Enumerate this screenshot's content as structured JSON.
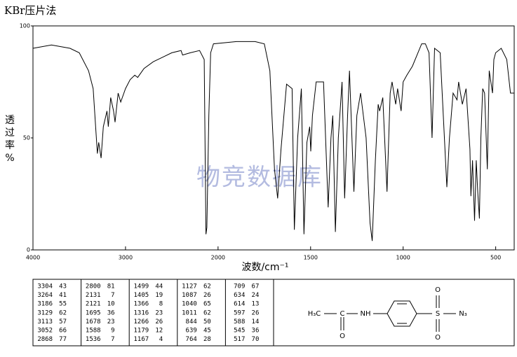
{
  "chart_data": {
    "type": "line",
    "title": "KBr压片法",
    "watermark": "物竞数据库",
    "x_label": "波数/cm⁻¹",
    "y_label": "透过率%",
    "xlim": [
      4000,
      400
    ],
    "x_scale_break": 2000,
    "xticks": [
      4000,
      3000,
      2000,
      1500,
      1000,
      500
    ],
    "ylim": [
      0,
      100
    ],
    "yticks": [
      0,
      50,
      100
    ],
    "color": "#000000",
    "x": [
      4000,
      3800,
      3600,
      3500,
      3400,
      3350,
      3304,
      3290,
      3264,
      3240,
      3200,
      3186,
      3160,
      3129,
      3113,
      3080,
      3052,
      3000,
      2950,
      2900,
      2868,
      2800,
      2700,
      2600,
      2500,
      2400,
      2383,
      2300,
      2200,
      2150,
      2131,
      2121,
      2100,
      2080,
      2050,
      1900,
      1800,
      1750,
      1720,
      1695,
      1678,
      1660,
      1630,
      1600,
      1588,
      1570,
      1550,
      1536,
      1520,
      1505,
      1499,
      1490,
      1470,
      1430,
      1405,
      1390,
      1380,
      1366,
      1350,
      1330,
      1316,
      1300,
      1290,
      1266,
      1250,
      1230,
      1200,
      1179,
      1167,
      1150,
      1135,
      1127,
      1110,
      1087,
      1070,
      1060,
      1040,
      1030,
      1011,
      1000,
      980,
      950,
      900,
      880,
      860,
      844,
      830,
      800,
      764,
      750,
      730,
      709,
      700,
      680,
      660,
      639,
      634,
      625,
      614,
      605,
      597,
      588,
      580,
      570,
      560,
      545,
      535,
      517,
      510,
      500,
      470,
      440,
      420,
      400
    ],
    "values": [
      90,
      91.5,
      90,
      88,
      80,
      72,
      43,
      48,
      41,
      55,
      62,
      55,
      68,
      62,
      57,
      70,
      66,
      72,
      76,
      78,
      77,
      81,
      84,
      86,
      88,
      89,
      87,
      88,
      89,
      85,
      7,
      10,
      60,
      88,
      92,
      93,
      93,
      92,
      80,
      36,
      23,
      45,
      74,
      72,
      9,
      50,
      72,
      7,
      48,
      55,
      44,
      60,
      75,
      75,
      19,
      50,
      60,
      8,
      50,
      75,
      23,
      60,
      80,
      26,
      60,
      70,
      50,
      12,
      4,
      40,
      65,
      62,
      68,
      26,
      70,
      75,
      65,
      72,
      62,
      75,
      78,
      82,
      92,
      92,
      88,
      50,
      90,
      88,
      28,
      50,
      70,
      67,
      75,
      65,
      72,
      45,
      24,
      40,
      13,
      40,
      26,
      14,
      50,
      72,
      70,
      36,
      80,
      70,
      85,
      88,
      90,
      85,
      70,
      70
    ]
  },
  "peak_table": [
    [
      [
        3304,
        43
      ],
      [
        3264,
        41
      ],
      [
        3186,
        55
      ],
      [
        3129,
        62
      ],
      [
        3113,
        57
      ],
      [
        3052,
        66
      ],
      [
        2868,
        77
      ]
    ],
    [
      [
        2800,
        81
      ],
      [
        2131,
        7
      ],
      [
        2121,
        10
      ],
      [
        1695,
        36
      ],
      [
        1678,
        23
      ],
      [
        1588,
        9
      ],
      [
        1536,
        7
      ]
    ],
    [
      [
        1499,
        44
      ],
      [
        1405,
        19
      ],
      [
        1366,
        8
      ],
      [
        1316,
        23
      ],
      [
        1266,
        26
      ],
      [
        1179,
        12
      ],
      [
        1167,
        4
      ]
    ],
    [
      [
        1127,
        62
      ],
      [
        1087,
        26
      ],
      [
        1040,
        65
      ],
      [
        1011,
        62
      ],
      [
        844,
        50
      ],
      [
        639,
        45
      ],
      [
        764,
        28
      ]
    ],
    [
      [
        709,
        67
      ],
      [
        634,
        24
      ],
      [
        614,
        13
      ],
      [
        597,
        26
      ],
      [
        588,
        14
      ],
      [
        545,
        36
      ],
      [
        517,
        70
      ]
    ]
  ],
  "structure": {
    "atoms": [
      "H₃C",
      "C",
      "O",
      "NH",
      "S",
      "O",
      "O",
      "N₃"
    ]
  }
}
